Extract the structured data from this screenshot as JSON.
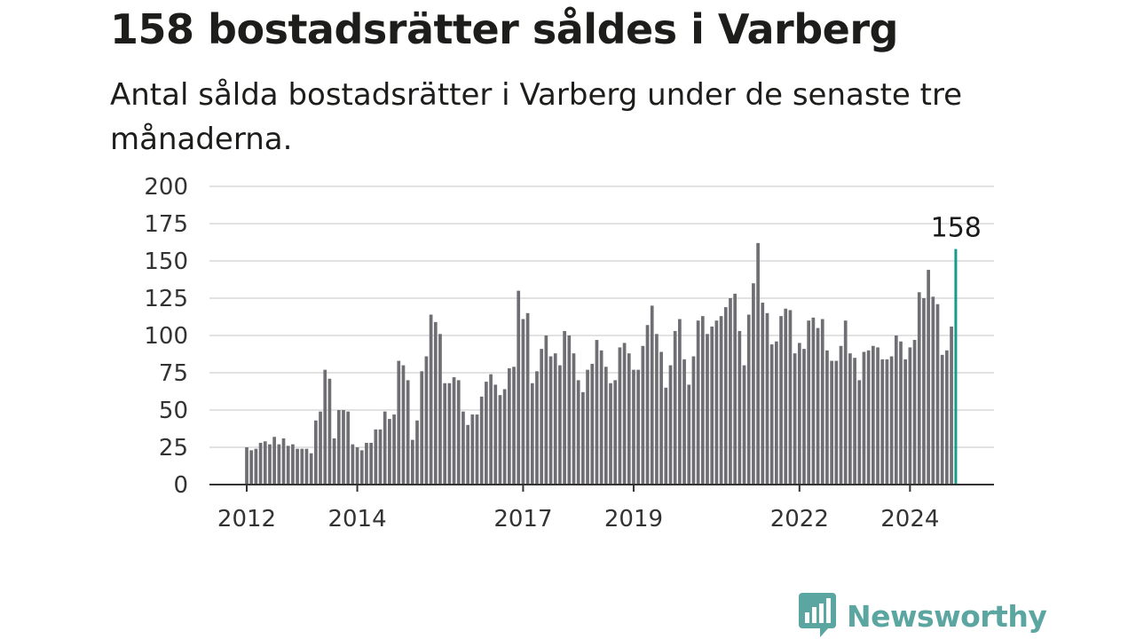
{
  "title": "158 bostadsrätter såldes i Varberg",
  "subtitle": "Antal sålda bostadsrätter i Varberg under de senaste tre månaderna.",
  "brand": {
    "name": "Newsworthy",
    "icon": "newsworthy-logo-icon"
  },
  "colors": {
    "bar": "#6f6e73",
    "highlight": "#1a9a8f",
    "grid": "#d9d9d9",
    "axis": "#333333",
    "brand": "#5ba6a0"
  },
  "chart_data": {
    "type": "bar",
    "title": "158 bostadsrätter såldes i Varberg",
    "xlabel": "",
    "ylabel": "",
    "ylim": [
      0,
      200
    ],
    "yticks": [
      0,
      25,
      50,
      75,
      100,
      125,
      150,
      175,
      200
    ],
    "xtick_labels": [
      "2012",
      "2014",
      "2017",
      "2019",
      "2022",
      "2024"
    ],
    "grid": true,
    "start": "2012-01",
    "values": [
      25,
      23,
      24,
      28,
      29,
      27,
      32,
      27,
      31,
      26,
      27,
      24,
      24,
      24,
      21,
      43,
      49,
      77,
      71,
      31,
      50,
      50,
      49,
      27,
      25,
      23,
      28,
      28,
      37,
      37,
      49,
      44,
      47,
      83,
      80,
      70,
      30,
      43,
      76,
      86,
      114,
      109,
      101,
      68,
      68,
      72,
      70,
      49,
      40,
      47,
      47,
      59,
      69,
      74,
      67,
      60,
      64,
      78,
      79,
      130,
      111,
      115,
      68,
      76,
      91,
      100,
      86,
      88,
      80,
      103,
      100,
      88,
      70,
      62,
      77,
      81,
      97,
      90,
      79,
      68,
      70,
      92,
      95,
      88,
      77,
      77,
      93,
      107,
      120,
      101,
      89,
      65,
      80,
      103,
      111,
      84,
      67,
      86,
      110,
      113,
      101,
      106,
      110,
      113,
      119,
      125,
      128,
      103,
      80,
      114,
      135,
      162,
      122,
      115,
      94,
      96,
      113,
      118,
      117,
      88,
      95,
      91,
      110,
      112,
      105,
      111,
      90,
      83,
      83,
      93,
      110,
      88,
      85,
      70,
      89,
      90,
      93,
      92,
      84,
      84,
      86,
      100,
      96,
      84,
      92,
      97,
      129,
      125,
      144,
      126,
      121,
      87,
      90,
      106,
      158
    ],
    "highlight_last": true,
    "annotations": [
      {
        "label": "158",
        "value": 158
      }
    ]
  }
}
